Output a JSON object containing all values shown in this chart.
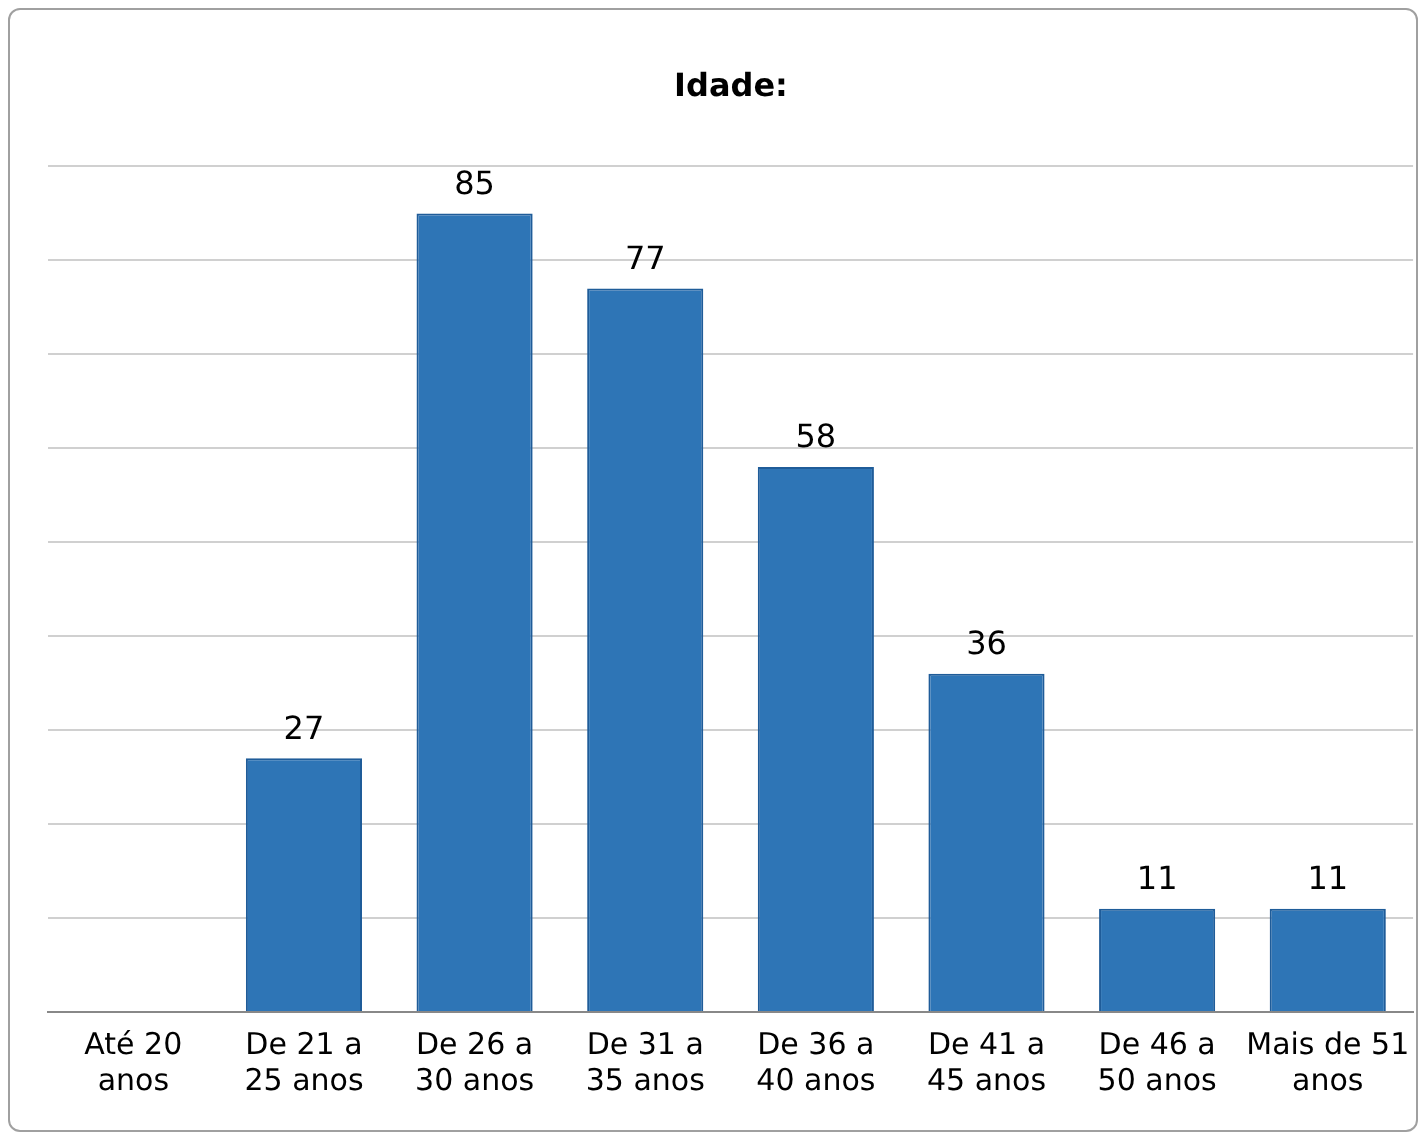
{
  "chart_data": {
    "type": "bar",
    "title": "Idade:",
    "categories": [
      "Até 20 anos",
      "De 21 a 25 anos",
      "De 26 a 30 anos",
      "De 31 a 35 anos",
      "De 36 a 40 anos",
      "De 41 a 45 anos",
      "De 46 a 50 anos",
      "Mais de 51 anos"
    ],
    "values": [
      0,
      27,
      85,
      77,
      58,
      36,
      11,
      11
    ],
    "value_labels": [
      null,
      "27",
      "85",
      "77",
      "58",
      "36",
      "11",
      "11"
    ],
    "color": "#2e75b6",
    "ylim": [
      0,
      90
    ],
    "yticks": [
      {
        "value": 0,
        "label": null
      },
      {
        "value": 10,
        "label": null
      },
      {
        "value": 20,
        "label": null
      },
      {
        "value": 30,
        "label": null
      },
      {
        "value": 40,
        "label": null
      },
      {
        "value": 50,
        "label": null
      },
      {
        "value": 60,
        "label": null
      },
      {
        "value": 70,
        "label": null
      },
      {
        "value": 80,
        "label": null
      },
      {
        "value": 90,
        "label": null
      }
    ],
    "grid": "y",
    "tick_labels": "x",
    "legend": false
  }
}
